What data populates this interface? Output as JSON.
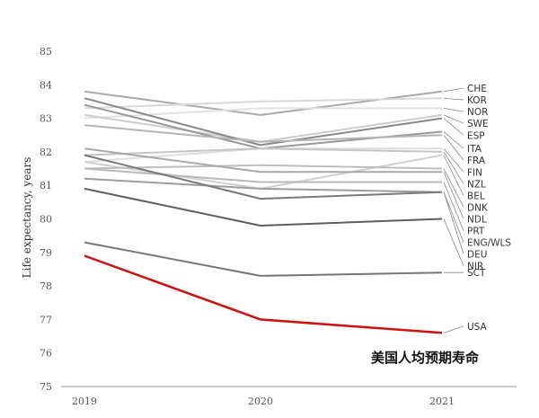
{
  "chart_data": {
    "type": "line",
    "title": "",
    "xlabel": "",
    "ylabel": "Life expectancy, years",
    "x": [
      "2019",
      "2020",
      "2021"
    ],
    "ylim": [
      75,
      85
    ],
    "yticks": [
      "75",
      "76",
      "77",
      "78",
      "79",
      "80",
      "81",
      "82",
      "83",
      "84",
      "85"
    ],
    "grid": false,
    "annotation": "美国人均预期寿命",
    "series": [
      {
        "name": "CHE",
        "values": [
          83.8,
          83.1,
          83.8
        ],
        "color": "#aaaaaa"
      },
      {
        "name": "KOR",
        "values": [
          83.3,
          83.5,
          83.6
        ],
        "color": "#d8d8d8"
      },
      {
        "name": "NOR",
        "values": [
          83.0,
          83.3,
          83.3
        ],
        "color": "#e2e2e2"
      },
      {
        "name": "SWE",
        "values": [
          83.1,
          82.3,
          83.1
        ],
        "color": "#cccccc"
      },
      {
        "name": "ESP",
        "values": [
          83.6,
          82.2,
          83.0
        ],
        "color": "#888888"
      },
      {
        "name": "ITA",
        "values": [
          83.4,
          82.1,
          82.6
        ],
        "color": "#999999"
      },
      {
        "name": "FRA",
        "values": [
          82.8,
          82.3,
          82.5
        ],
        "color": "#b5b5b5"
      },
      {
        "name": "FIN",
        "values": [
          81.7,
          82.1,
          82.1
        ],
        "color": "#dedede"
      },
      {
        "name": "NZL",
        "values": [
          81.9,
          82.1,
          82.0
        ],
        "color": "#c5c5c5"
      },
      {
        "name": "BEL",
        "values": [
          81.7,
          80.9,
          81.9
        ],
        "color": "#d0d0d0"
      },
      {
        "name": "DNK",
        "values": [
          81.5,
          81.6,
          81.5
        ],
        "color": "#bdbdbd"
      },
      {
        "name": "NDL",
        "values": [
          82.1,
          81.4,
          81.4
        ],
        "color": "#a8a8a8"
      },
      {
        "name": "PRT",
        "values": [
          81.5,
          81.1,
          81.1
        ],
        "color": "#b8b8b8"
      },
      {
        "name": "ENG/WLS",
        "values": [
          81.2,
          80.9,
          80.8
        ],
        "color": "#9c9c9c"
      },
      {
        "name": "DEU",
        "values": [
          81.9,
          80.6,
          80.8
        ],
        "color": "#7a7a7a"
      },
      {
        "name": "NIR",
        "values": [
          80.9,
          79.8,
          80.0
        ],
        "color": "#5e5e5e"
      },
      {
        "name": "SCT",
        "values": [
          79.3,
          78.3,
          78.4
        ],
        "color": "#777777"
      },
      {
        "name": "USA",
        "values": [
          78.9,
          77.0,
          76.6
        ],
        "color": "#cc1111"
      }
    ],
    "label_order": [
      "CHE",
      "KOR",
      "NOR",
      "SWE",
      "ESP",
      "ITA",
      "FRA",
      "FIN",
      "NZL",
      "BEL",
      "DNK",
      "NDL",
      "PRT",
      "ENG/WLS",
      "DEU",
      "NIR",
      "SCT",
      "USA"
    ],
    "label_positions": [
      83.9,
      83.55,
      83.2,
      82.85,
      82.5,
      82.1,
      81.75,
      81.4,
      81.05,
      80.7,
      80.35,
      80.0,
      79.65,
      79.3,
      78.95,
      78.6,
      78.4,
      76.8
    ]
  }
}
